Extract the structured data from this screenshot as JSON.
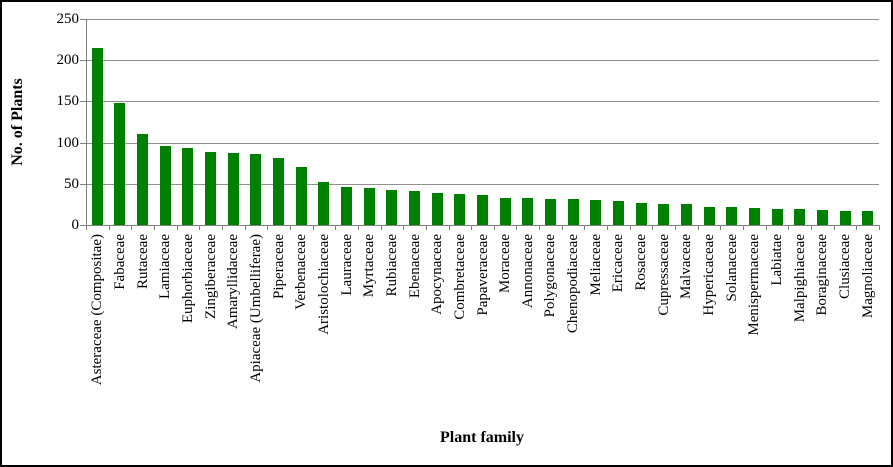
{
  "chart_data": {
    "type": "bar",
    "title": "",
    "xlabel": "Plant family",
    "ylabel": "No. of Plants",
    "ylim": [
      0,
      250
    ],
    "yticks": [
      0,
      50,
      100,
      150,
      200,
      250
    ],
    "grid": "horizontal",
    "legend": "none",
    "bar_color": "#008000",
    "gridline_color": "#909090",
    "axis_color": "#808080",
    "categories": [
      "Asteraceae (Compositae)",
      "Fabaceae",
      "Rutaceae",
      "Lamiaceae",
      "Euphorbiaceae",
      "Zingiberaceae",
      "Amaryllidaceae",
      "Apiaceae (Umbelliferae)",
      "Piperaceae",
      "Verbenaceae",
      "Aristolochiaceae",
      "Lauraceae",
      "Myrtaceae",
      "Rubiaceae",
      "Ebenaceae",
      "Apocynaceae",
      "Combretaceae",
      "Papaveraceae",
      "Moraceae",
      "Annonaceae",
      "Polygonaceae",
      "Chenopodiaceae",
      "Meliaceae",
      "Ericaceae",
      "Rosaceae",
      "Cupressaceae",
      "Malvaceae",
      "Hypericaceae",
      "Solanaceae",
      "Menispermaceae",
      "Labiatae",
      "Malpighiaceae",
      "Boraginaceae",
      "Clusiaceae",
      "Magnoliaceae"
    ],
    "values": [
      215,
      148,
      110,
      96,
      93,
      88,
      87,
      86,
      81,
      70,
      52,
      46,
      45,
      43,
      41,
      39,
      38,
      36,
      33,
      33,
      32,
      31,
      30,
      29,
      27,
      25,
      25,
      22,
      22,
      21,
      19,
      19,
      18,
      17,
      17
    ]
  }
}
